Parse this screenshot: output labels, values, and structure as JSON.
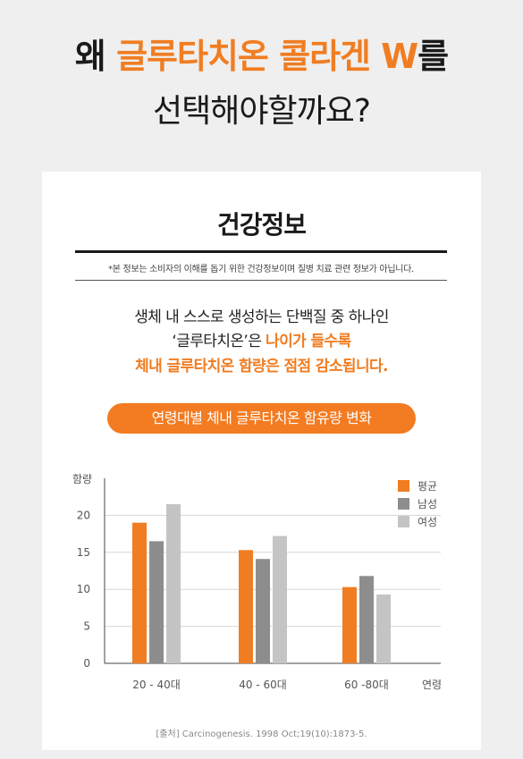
{
  "headline": {
    "line1_prefix": "왜 ",
    "line1_highlight": "글루타치온 콜라겐 W",
    "line1_suffix": "를",
    "line2": "선택해야할까요?"
  },
  "card": {
    "title": "건강정보",
    "disclaimer": "*본 정보는 소비자의 이해를 돕기 위한 건강정보이며 질병 치료 관련 정보가 아닙니다.",
    "desc_line1": "생체 내 스스로 생성하는 단백질 중 하나인",
    "desc_line2_plain": "‘글루타치온’은 ",
    "desc_line2_highlight": "나이가 들수록",
    "desc_line3": "체내 글루타치온 함량은 점점 감소됩니다.",
    "pill_label": "연령대별 체내 글루타치온 함유량 변화",
    "source": "[출처] Carcinogenesis. 1998 Oct;19(10):1873-5."
  },
  "colors": {
    "accent": "#f07d22",
    "male": "#8d8d8d",
    "female": "#c4c4c4"
  },
  "chart_data": {
    "type": "bar",
    "categories": [
      "20 - 40대",
      "40 - 60대",
      "60 -80대"
    ],
    "series": [
      {
        "name": "평균",
        "values": [
          19.0,
          15.3,
          10.3
        ],
        "color": "#f07d22"
      },
      {
        "name": "남성",
        "values": [
          16.5,
          14.1,
          11.8
        ],
        "color": "#8d8d8d"
      },
      {
        "name": "여성",
        "values": [
          21.5,
          17.2,
          9.3
        ],
        "color": "#c4c4c4"
      }
    ],
    "ylabel": "함량",
    "xlabel": "연령",
    "ylim": [
      0,
      25
    ],
    "yticks": [
      0,
      5,
      10,
      15,
      20
    ],
    "grid": true,
    "legend_position": "top-right"
  }
}
